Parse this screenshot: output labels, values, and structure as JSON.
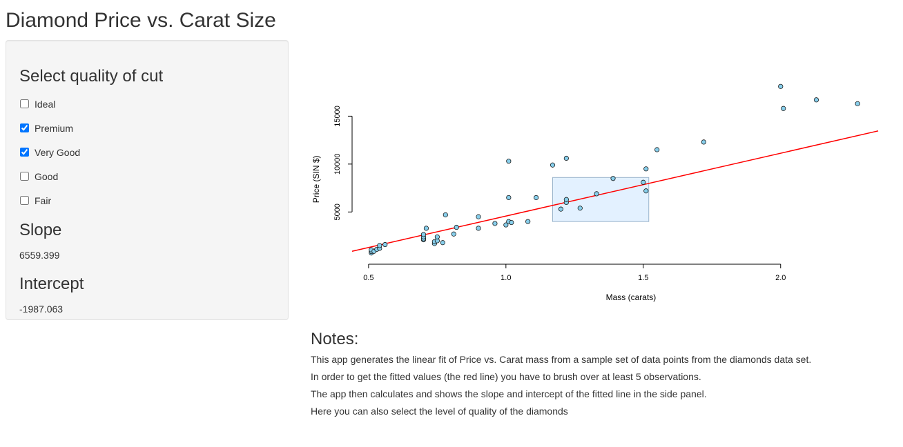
{
  "app": {
    "title": "Diamond Price vs. Carat Size"
  },
  "sidebar": {
    "cut_heading": "Select quality of cut",
    "cut_options": [
      {
        "label": "Ideal",
        "checked": false
      },
      {
        "label": "Premium",
        "checked": true
      },
      {
        "label": "Very Good",
        "checked": true
      },
      {
        "label": "Good",
        "checked": false
      },
      {
        "label": "Fair",
        "checked": false
      }
    ],
    "slope_heading": "Slope",
    "slope_value": "6559.399",
    "intercept_heading": "Intercept",
    "intercept_value": "-1987.063"
  },
  "chart_data": {
    "type": "scatter",
    "xlabel": "Mass (carats)",
    "ylabel": "Price (SIN $)",
    "xlim": [
      0.44,
      2.36
    ],
    "ylim": [
      -450,
      18700
    ],
    "x_ticks": [
      0.5,
      1.0,
      1.5,
      2.0
    ],
    "x_tick_labels": [
      "0.5",
      "1.0",
      "1.5",
      "2.0"
    ],
    "y_ticks": [
      5000,
      10000,
      15000
    ],
    "y_tick_labels": [
      "5000",
      "10000",
      "15000"
    ],
    "grid": false,
    "point_color": "#87ceeb",
    "line_color": "#ff0000",
    "fit_line": {
      "slope": 6559.399,
      "intercept": -1987.063
    },
    "brush": {
      "x": [
        1.17,
        1.52
      ],
      "y": [
        4000,
        8600
      ],
      "color": "#cce5ff"
    },
    "points": [
      {
        "x": 0.51,
        "y": 720
      },
      {
        "x": 0.51,
        "y": 880
      },
      {
        "x": 0.51,
        "y": 1050
      },
      {
        "x": 0.52,
        "y": 900
      },
      {
        "x": 0.53,
        "y": 1100
      },
      {
        "x": 0.54,
        "y": 1200
      },
      {
        "x": 0.54,
        "y": 1500
      },
      {
        "x": 0.56,
        "y": 1600
      },
      {
        "x": 0.7,
        "y": 2100
      },
      {
        "x": 0.7,
        "y": 2200
      },
      {
        "x": 0.7,
        "y": 2400
      },
      {
        "x": 0.7,
        "y": 2650
      },
      {
        "x": 0.71,
        "y": 3300
      },
      {
        "x": 0.74,
        "y": 1700
      },
      {
        "x": 0.74,
        "y": 1900
      },
      {
        "x": 0.75,
        "y": 2000
      },
      {
        "x": 0.75,
        "y": 2400
      },
      {
        "x": 0.77,
        "y": 1800
      },
      {
        "x": 0.78,
        "y": 4700
      },
      {
        "x": 0.81,
        "y": 2700
      },
      {
        "x": 0.82,
        "y": 3400
      },
      {
        "x": 0.9,
        "y": 3300
      },
      {
        "x": 0.9,
        "y": 4500
      },
      {
        "x": 0.96,
        "y": 3800
      },
      {
        "x": 1.0,
        "y": 3650
      },
      {
        "x": 1.01,
        "y": 4000
      },
      {
        "x": 1.02,
        "y": 3900
      },
      {
        "x": 1.01,
        "y": 6500
      },
      {
        "x": 1.01,
        "y": 10300
      },
      {
        "x": 1.08,
        "y": 4000
      },
      {
        "x": 1.11,
        "y": 6500
      },
      {
        "x": 1.17,
        "y": 9900
      },
      {
        "x": 1.2,
        "y": 5300
      },
      {
        "x": 1.22,
        "y": 6000
      },
      {
        "x": 1.22,
        "y": 6300
      },
      {
        "x": 1.22,
        "y": 10600
      },
      {
        "x": 1.27,
        "y": 5400
      },
      {
        "x": 1.33,
        "y": 6900
      },
      {
        "x": 1.39,
        "y": 8500
      },
      {
        "x": 1.5,
        "y": 8100
      },
      {
        "x": 1.51,
        "y": 7200
      },
      {
        "x": 1.51,
        "y": 9500
      },
      {
        "x": 1.55,
        "y": 11500
      },
      {
        "x": 1.72,
        "y": 12300
      },
      {
        "x": 2.0,
        "y": 18100
      },
      {
        "x": 2.01,
        "y": 15800
      },
      {
        "x": 2.13,
        "y": 16700
      },
      {
        "x": 2.28,
        "y": 16300
      }
    ]
  },
  "notes": {
    "heading": "Notes:",
    "lines": [
      "This app generates the linear fit of Price vs. Carat mass from a sample set of data points from the diamonds data set.",
      "In order to get the fitted values (the red line) you have to brush over at least 5 observations.",
      "The app then calculates and shows the slope and intercept of the fitted line in the side panel.",
      "Here you can also select the level of quality of the diamonds"
    ]
  }
}
